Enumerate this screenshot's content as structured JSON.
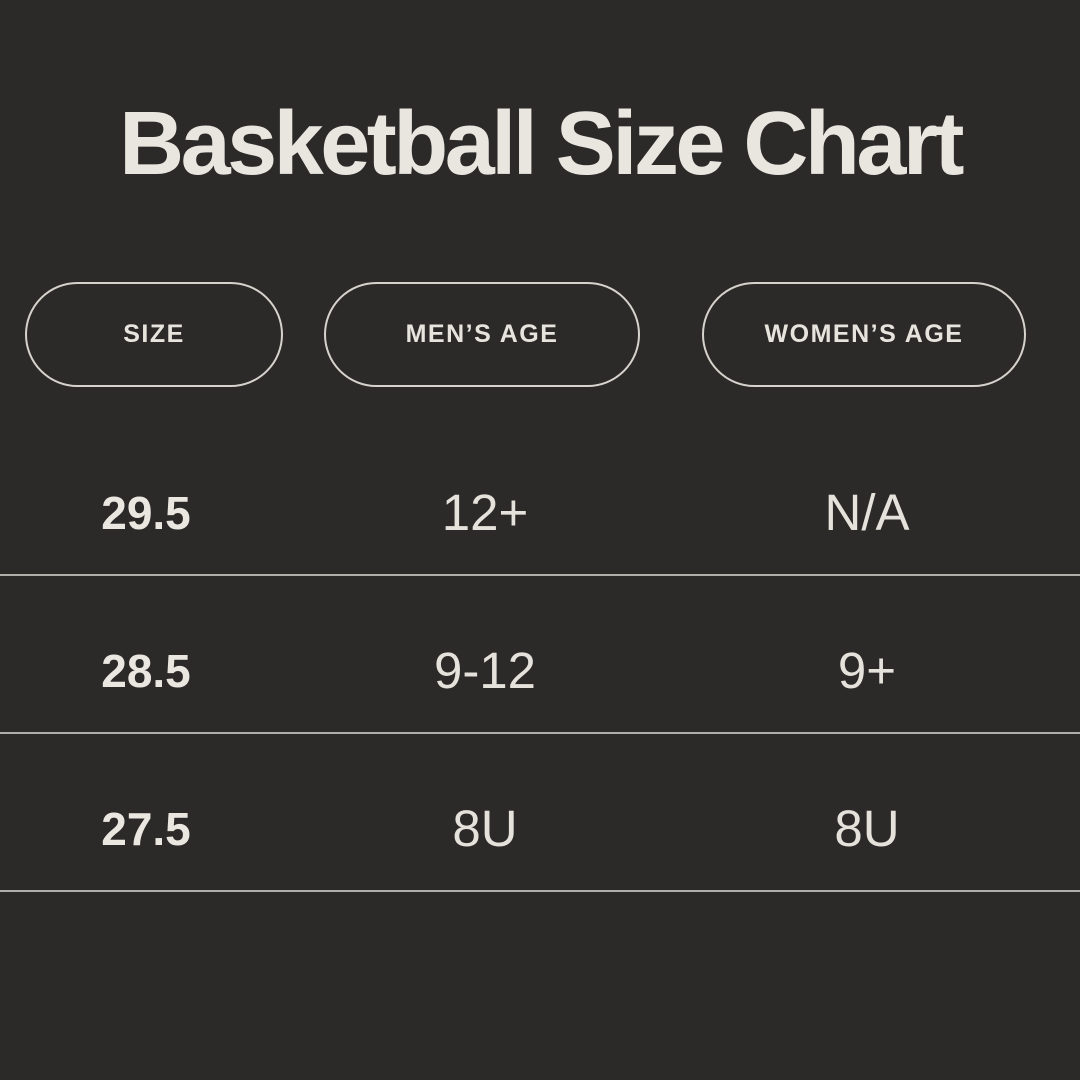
{
  "page": {
    "background_color": "#2b2a28",
    "text_color": "#e9e6e0",
    "divider_color": "#b0aea9",
    "pill_border_color": "#d6d3cd"
  },
  "title": "Basketball Size Chart",
  "table": {
    "columns": [
      {
        "label": "SIZE"
      },
      {
        "label": "MEN’S AGE"
      },
      {
        "label": "WOMEN’S AGE"
      }
    ],
    "rows": [
      {
        "size": "29.5",
        "mens_age": "12+",
        "womens_age": "N/A"
      },
      {
        "size": "28.5",
        "mens_age": "9-12",
        "womens_age": "9+"
      },
      {
        "size": "27.5",
        "mens_age": "8U",
        "womens_age": "8U"
      }
    ]
  },
  "chart_data": {
    "type": "table",
    "title": "Basketball Size Chart",
    "columns": [
      "SIZE",
      "MEN’S AGE",
      "WOMEN’S AGE"
    ],
    "rows": [
      [
        "29.5",
        "12+",
        "N/A"
      ],
      [
        "28.5",
        "9-12",
        "9+"
      ],
      [
        "27.5",
        "8U",
        "8U"
      ]
    ]
  }
}
